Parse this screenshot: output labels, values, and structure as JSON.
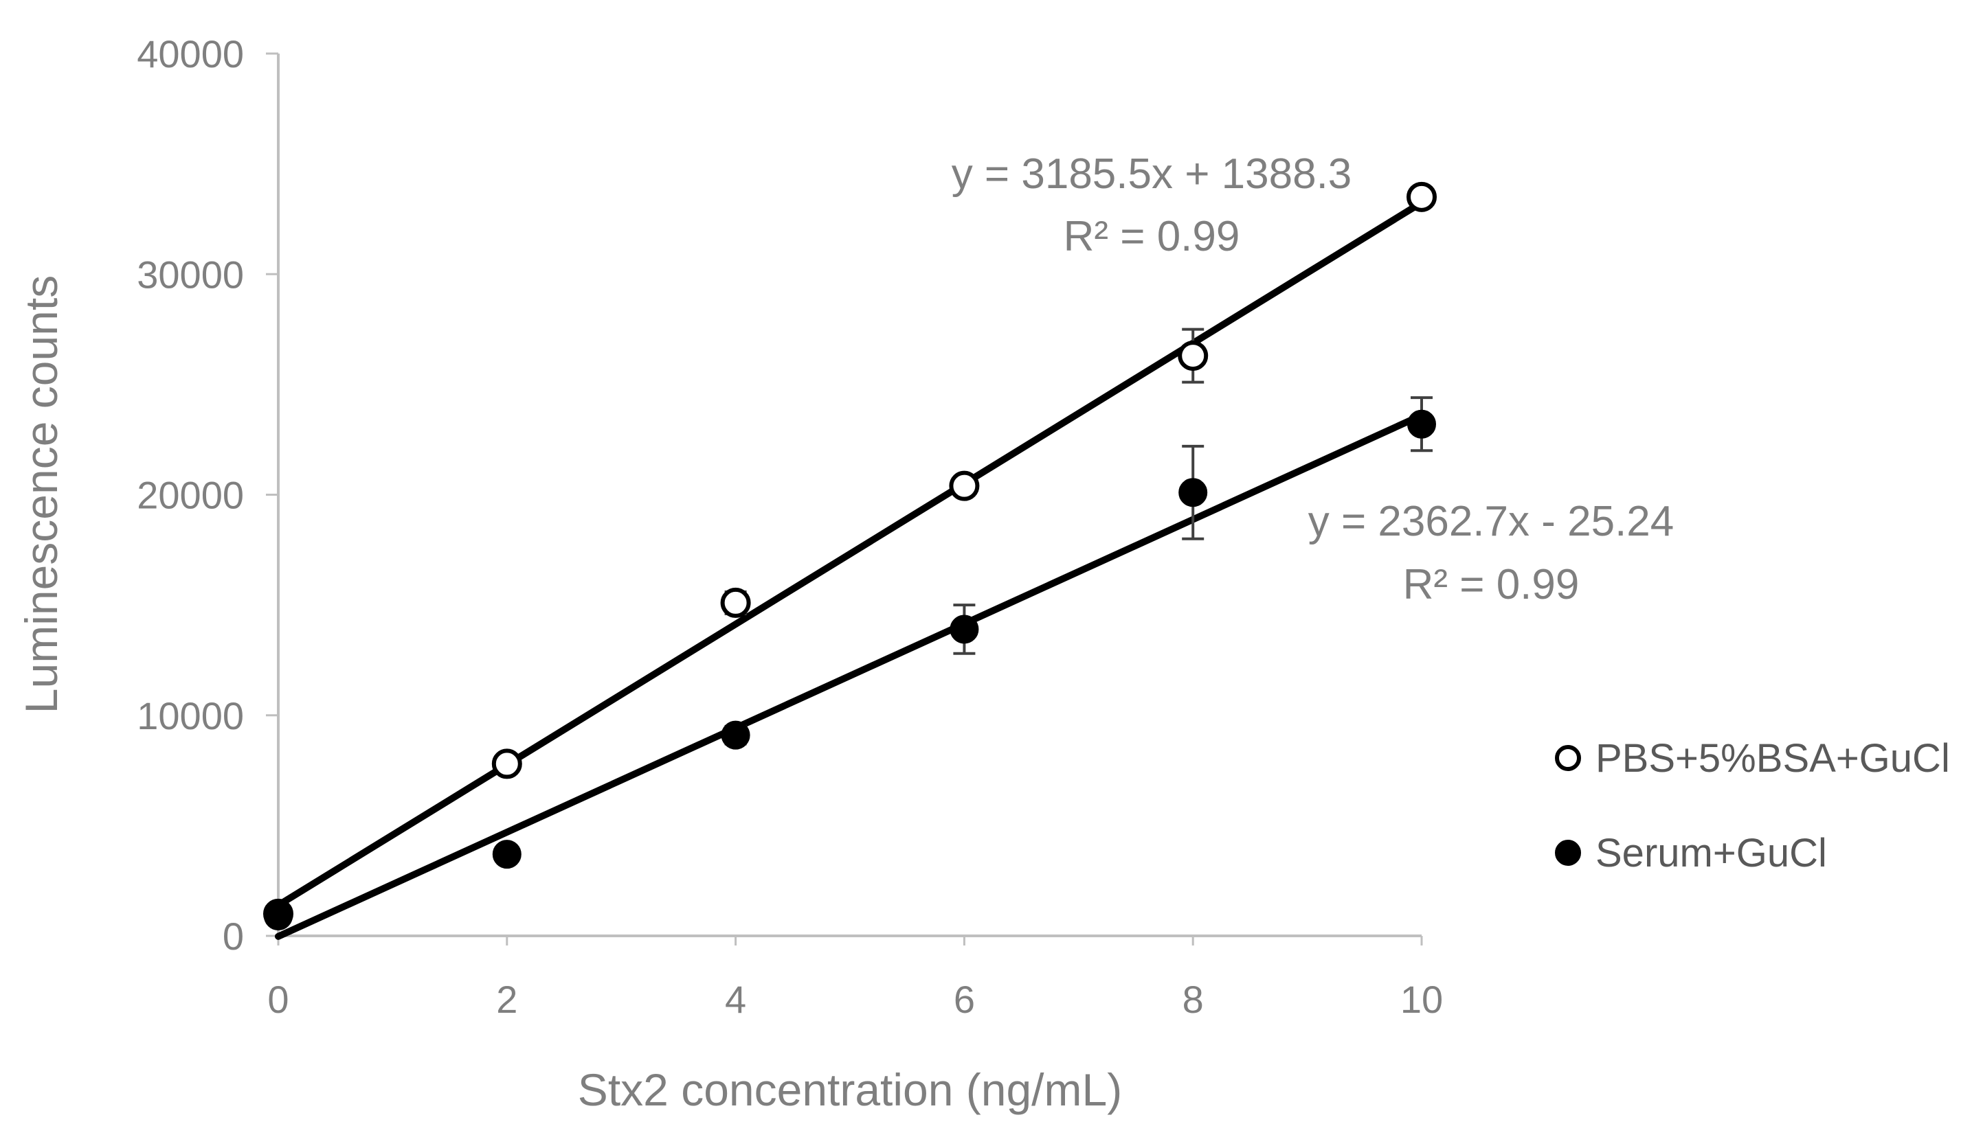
{
  "chart_data": {
    "type": "scatter",
    "title": "",
    "xlabel": "Stx2 concentration (ng/mL)",
    "ylabel": "Luminescence counts",
    "xlim": [
      0,
      10
    ],
    "ylim": [
      0,
      40000
    ],
    "xticks": [
      "0",
      "2",
      "4",
      "6",
      "8",
      "10"
    ],
    "yticks": [
      "0",
      "10000",
      "20000",
      "30000",
      "40000"
    ],
    "grid": false,
    "legend_position": "right",
    "series": [
      {
        "name": "PBS+5%BSA+GuCl",
        "marker": "open-circle",
        "x": [
          0,
          2,
          4,
          6,
          8,
          10
        ],
        "y": [
          1000,
          7800,
          15100,
          20400,
          26300,
          33500
        ],
        "error": [
          150,
          300,
          500,
          300,
          1200,
          300
        ],
        "trendline": {
          "slope": 3185.5,
          "intercept": 1388.3
        },
        "equation": "y = 3185.5x + 1388.3",
        "r2": "R² = 0.99"
      },
      {
        "name": "Serum+GuCl",
        "marker": "filled-circle",
        "x": [
          0,
          2,
          4,
          6,
          8,
          10
        ],
        "y": [
          900,
          3700,
          9100,
          13900,
          20100,
          23200
        ],
        "error": [
          150,
          300,
          400,
          1100,
          2100,
          1200
        ],
        "trendline": {
          "slope": 2362.7,
          "intercept": -25.24
        },
        "equation": "y = 2362.7x - 25.24",
        "r2": "R² = 0.99"
      }
    ]
  }
}
